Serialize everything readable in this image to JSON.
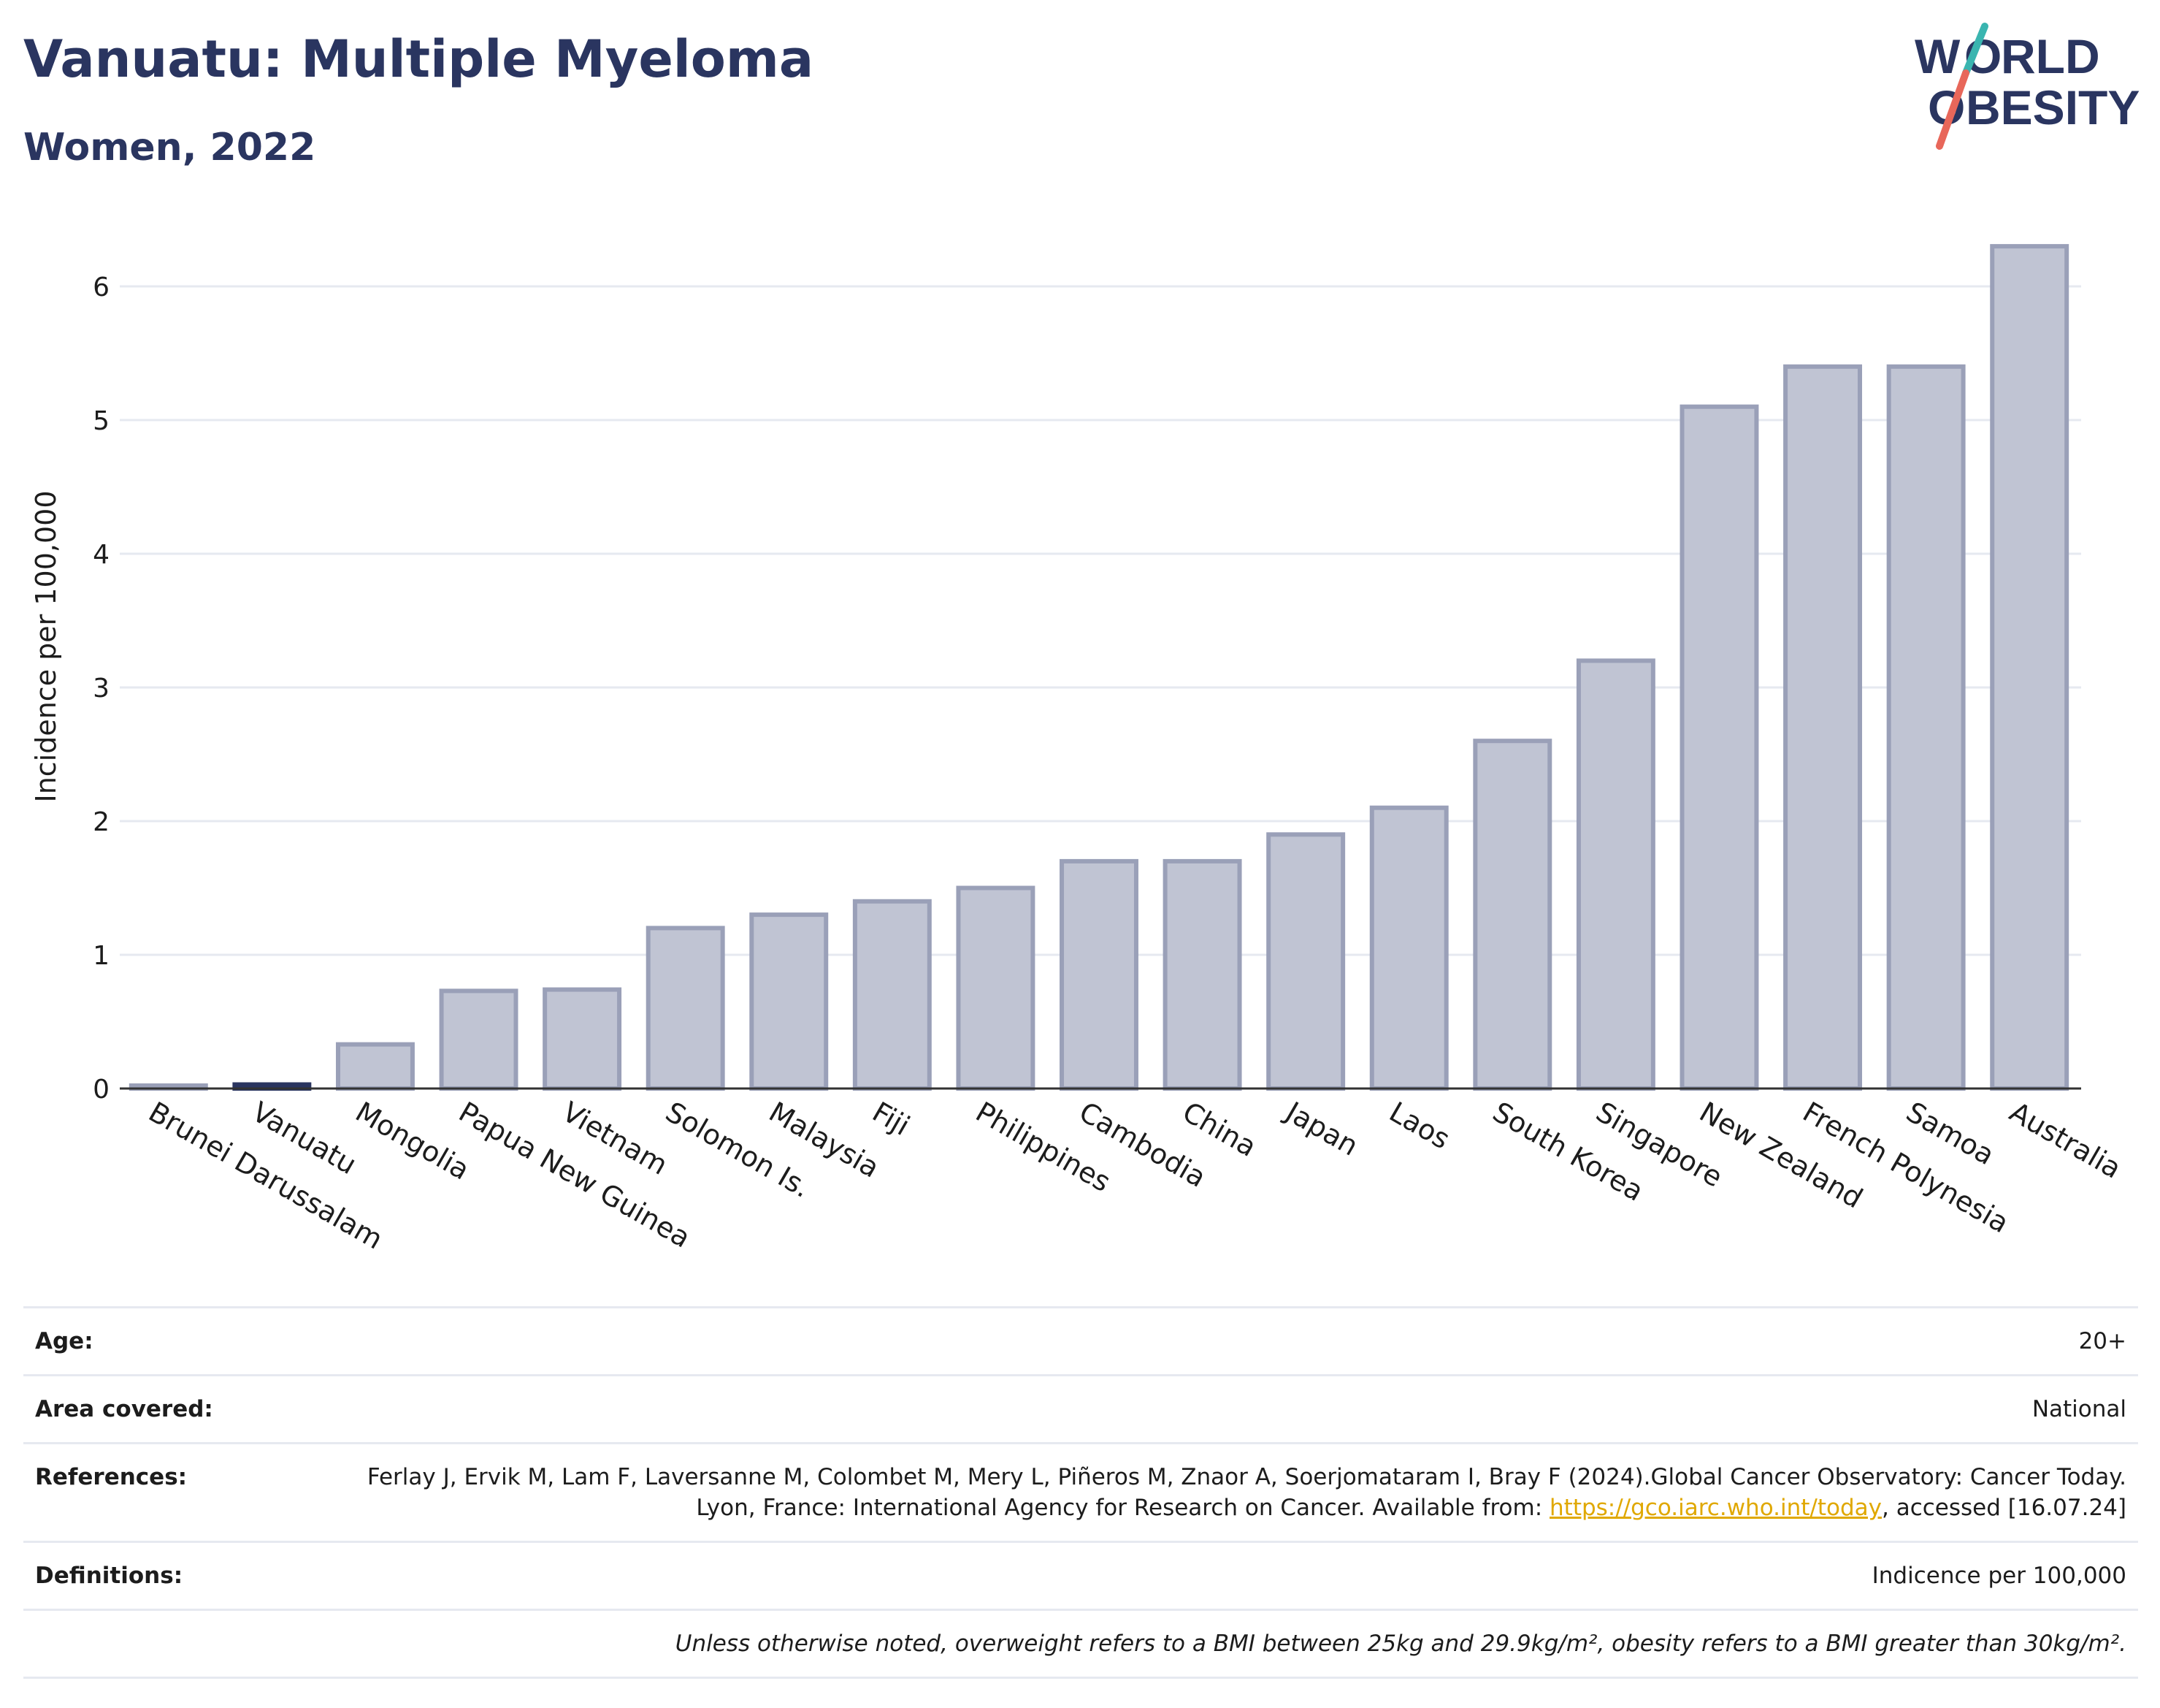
{
  "header": {
    "title": "Vanuatu: Multiple Myeloma",
    "subtitle": "Women, 2022"
  },
  "logo": {
    "line1": "WORLD",
    "line2": "OBESITY",
    "colors": {
      "navy": "#2a3560",
      "teal": "#3ab5b0",
      "coral": "#e8675a"
    }
  },
  "chart_data": {
    "type": "bar",
    "title": "Vanuatu: Multiple Myeloma",
    "subtitle": "Women, 2022",
    "xlabel": "",
    "ylabel": "Incidence per 100,000",
    "ylim": [
      0,
      6.5
    ],
    "yticks": [
      0,
      1,
      2,
      3,
      4,
      5,
      6
    ],
    "grid": true,
    "highlight": "Vanuatu",
    "colors": {
      "bar": "#c0c4d3",
      "bar_border": "#9aa0b8",
      "highlight": "#2a3560",
      "grid": "#e6e9f0",
      "axis": "#333333"
    },
    "categories": [
      "Brunei Darussalam",
      "Vanuatu",
      "Mongolia",
      "Papua New Guinea",
      "Vietnam",
      "Solomon Is.",
      "Malaysia",
      "Fiji",
      "Philippines",
      "Cambodia",
      "China",
      "Japan",
      "Laos",
      "South Korea",
      "Singapore",
      "New Zealand",
      "French Polynesia",
      "Samoa",
      "Australia"
    ],
    "values": [
      0.02,
      0.03,
      0.33,
      0.73,
      0.74,
      1.2,
      1.3,
      1.4,
      1.5,
      1.7,
      1.7,
      1.9,
      2.1,
      2.6,
      3.2,
      5.1,
      5.4,
      5.4,
      6.3
    ]
  },
  "meta": {
    "age_label": "Age:",
    "age_value": "20+",
    "area_label": "Area covered:",
    "area_value": "National",
    "refs_label": "References:",
    "refs_text": "Ferlay J, Ervik M, Lam F, Laversanne M, Colombet M, Mery L, Piñeros M, Znaor A, Soerjomataram I, Bray F (2024).Global Cancer Observatory: Cancer Today. Lyon, France: International Agency for Research on Cancer. Available from: ",
    "refs_link": "https://gco.iarc.who.int/today",
    "refs_tail": ", accessed [16.07.24]",
    "defs_label": "Definitions:",
    "defs_value": "Indicence per 100,000",
    "note": "Unless otherwise noted, overweight refers to a BMI between 25kg and 29.9kg/m², obesity refers to a BMI greater than 30kg/m²."
  }
}
